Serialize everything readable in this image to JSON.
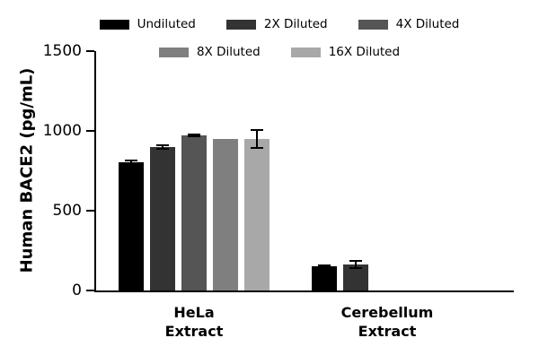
{
  "chart_data": {
    "type": "bar",
    "title": "",
    "ylabel": "Human BACE2 (pg/mL)",
    "xlabel": "",
    "ylim": [
      0,
      1500
    ],
    "yticks": [
      0,
      500,
      1000,
      1500
    ],
    "grid": false,
    "legend_position": "top",
    "categories": [
      "HeLa\nExtract",
      "Cerebellum\nExtract"
    ],
    "series": [
      {
        "name": "Undiluted",
        "color": "#000000",
        "values": [
          805,
          150
        ],
        "errors": [
          18,
          12
        ]
      },
      {
        "name": "2X Diluted",
        "color": "#333333",
        "values": [
          900,
          162
        ],
        "errors": [
          18,
          28
        ]
      },
      {
        "name": "4X Diluted",
        "color": "#555555",
        "values": [
          970,
          null
        ],
        "errors": [
          12,
          null
        ]
      },
      {
        "name": "8X Diluted",
        "color": "#7f7f7f",
        "values": [
          952,
          null
        ],
        "errors": [
          0,
          null
        ]
      },
      {
        "name": "16X Diluted",
        "color": "#a8a8a8",
        "values": [
          948,
          null
        ],
        "errors": [
          62,
          null
        ]
      }
    ],
    "legend_rows": [
      [
        0,
        1,
        2
      ],
      [
        3,
        4
      ]
    ]
  }
}
